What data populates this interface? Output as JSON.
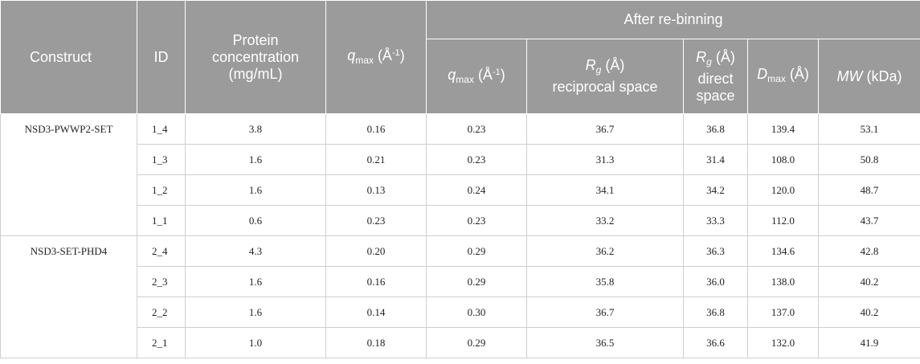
{
  "header": {
    "construct": "Construct",
    "id": "ID",
    "protein_concentration": "Protein concentration (mg/mL)",
    "qmax_q": "q",
    "qmax_sub": "max",
    "qmax_unit_open": " (Å",
    "qmax_unit_exp": "-1",
    "qmax_unit_close": ")",
    "after_rebinning": "After re-binning",
    "rg_r": "R",
    "rg_sub": "g",
    "rg_unit": " (Å)",
    "rg_reciprocal": "reciprocal space",
    "rg_direct": "direct space",
    "dmax_d": "D",
    "dmax_sub": "max",
    "dmax_unit": " (Å)",
    "mw_label": "MW",
    "mw_unit": " (kDa)"
  },
  "groups": [
    {
      "construct": "NSD3-PWWP2-SET",
      "rows": [
        {
          "id": "1_4",
          "conc": "3.8",
          "qmax": "0.16",
          "qmax_rb": "0.23",
          "rg_rec": "36.7",
          "rg_dir": "36.8",
          "dmax": "139.4",
          "mw": "53.1"
        },
        {
          "id": "1_3",
          "conc": "1.6",
          "qmax": "0.21",
          "qmax_rb": "0.23",
          "rg_rec": "31.3",
          "rg_dir": "31.4",
          "dmax": "108.0",
          "mw": "50.8"
        },
        {
          "id": "1_2",
          "conc": "1.6",
          "qmax": "0.13",
          "qmax_rb": "0.24",
          "rg_rec": "34.1",
          "rg_dir": "34.2",
          "dmax": "120.0",
          "mw": "48.7"
        },
        {
          "id": "1_1",
          "conc": "0.6",
          "qmax": "0.23",
          "qmax_rb": "0.23",
          "rg_rec": "33.2",
          "rg_dir": "33.3",
          "dmax": "112.0",
          "mw": "43.7"
        }
      ]
    },
    {
      "construct": "NSD3-SET-PHD4",
      "rows": [
        {
          "id": "2_4",
          "conc": "4.3",
          "qmax": "0.20",
          "qmax_rb": "0.29",
          "rg_rec": "36.2",
          "rg_dir": "36.3",
          "dmax": "134.6",
          "mw": "42.8"
        },
        {
          "id": "2_3",
          "conc": "1.6",
          "qmax": "0.16",
          "qmax_rb": "0.29",
          "rg_rec": "35.8",
          "rg_dir": "36.0",
          "dmax": "138.0",
          "mw": "40.2"
        },
        {
          "id": "2_2",
          "conc": "1.6",
          "qmax": "0.14",
          "qmax_rb": "0.30",
          "rg_rec": "36.7",
          "rg_dir": "36.8",
          "dmax": "137.0",
          "mw": "40.2"
        },
        {
          "id": "2_1",
          "conc": "1.0",
          "qmax": "0.18",
          "qmax_rb": "0.29",
          "rg_rec": "36.5",
          "rg_dir": "36.6",
          "dmax": "132.0",
          "mw": "41.9"
        }
      ]
    }
  ]
}
